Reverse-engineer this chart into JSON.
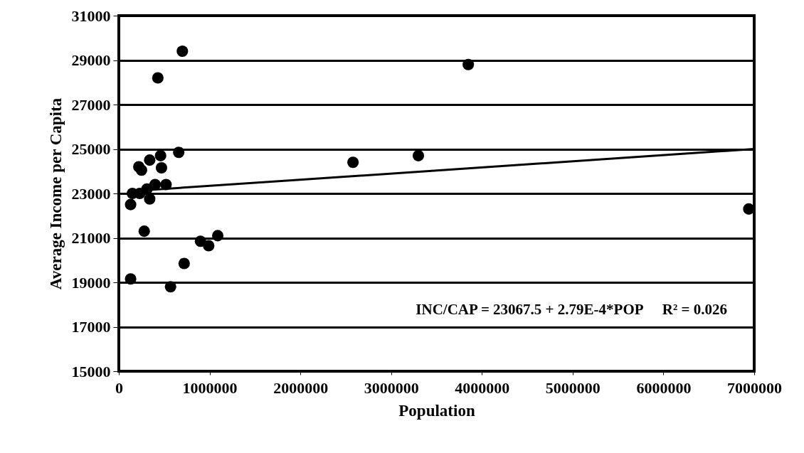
{
  "chart_data": {
    "type": "scatter",
    "xlabel": "Population",
    "ylabel": "Average Income per Capita",
    "xlim": [
      0,
      7000000
    ],
    "ylim": [
      15000,
      31000
    ],
    "xticks": [
      0,
      1000000,
      2000000,
      3000000,
      4000000,
      5000000,
      6000000,
      7000000
    ],
    "yticks": [
      15000,
      17000,
      19000,
      21000,
      23000,
      25000,
      27000,
      29000,
      31000
    ],
    "grid": "y",
    "annotations": [
      "INC/CAP = 23067.5 + 2.79E-4*POP     R² = 0.026"
    ],
    "series": [
      {
        "color": "#000000",
        "marker": "circle",
        "x": [
          700000,
          430000,
          660000,
          460000,
          340000,
          220000,
          250000,
          470000,
          400000,
          520000,
          310000,
          150000,
          230000,
          340000,
          130000,
          280000,
          1090000,
          900000,
          990000,
          720000,
          130000,
          570000,
          2580000,
          3300000,
          3850000,
          6940000
        ],
        "values": [
          29400,
          28200,
          24850,
          24700,
          24500,
          24200,
          24050,
          24150,
          23400,
          23400,
          23200,
          23000,
          23000,
          22750,
          22500,
          21300,
          21100,
          20850,
          20650,
          19850,
          19150,
          18800,
          24400,
          24700,
          28800,
          22300
        ]
      },
      {
        "type": "line",
        "color": "#000000",
        "marker": "none",
        "x": [
          130000,
          7000000
        ],
        "values": [
          23100,
          25000
        ]
      }
    ]
  }
}
